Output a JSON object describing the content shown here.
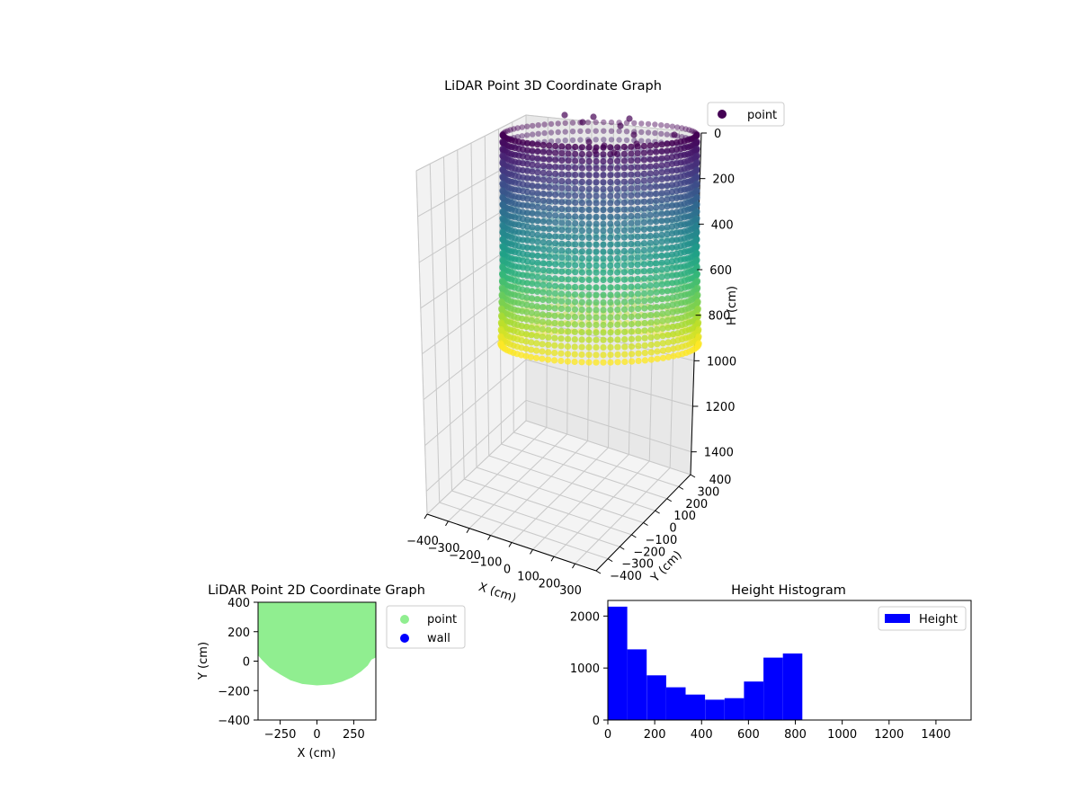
{
  "chart_data": [
    {
      "type": "scatter",
      "projection": "3d",
      "title": "LiDAR Point 3D Coordinate Graph",
      "xlabel": "X (cm)",
      "ylabel": "Y (cm)",
      "zlabel": "H (cm)",
      "xlim": [
        -400,
        400
      ],
      "ylim": [
        -400,
        400
      ],
      "zlim": [
        0,
        1500
      ],
      "z_inverted": true,
      "x_ticks": [
        -400,
        -300,
        -200,
        -100,
        0,
        100,
        200,
        300
      ],
      "y_ticks": [
        -400,
        -300,
        -200,
        -100,
        0,
        100,
        200,
        300,
        400
      ],
      "z_ticks": [
        0,
        200,
        400,
        600,
        800,
        1000,
        1200,
        1400
      ],
      "x_tick_labels": [
        "−400",
        "−300",
        "−200",
        "−100",
        "0",
        "100",
        "200",
        "300"
      ],
      "y_tick_labels": [
        "−400",
        "−300",
        "−200",
        "−100",
        "0",
        "100",
        "200",
        "300",
        "400"
      ],
      "z_tick_labels": [
        "0",
        "200",
        "400",
        "600",
        "800",
        "1000",
        "1200",
        "1400"
      ],
      "colormap": "viridis",
      "legend": [
        {
          "label": "point",
          "color": "#440154"
        }
      ],
      "legend_position": "upper right",
      "series": [
        {
          "shape": "cylinder-wall",
          "radius_x": 390,
          "radius_y_front": 160,
          "radius_y_back": 400,
          "height_range": [
            0,
            830
          ]
        }
      ]
    },
    {
      "type": "scatter",
      "title": "LiDAR Point 2D Coordinate Graph",
      "xlabel": "X (cm)",
      "ylabel": "Y (cm)",
      "xlim": [
        -400,
        400
      ],
      "ylim": [
        -400,
        400
      ],
      "x_ticks": [
        -250,
        0,
        250
      ],
      "y_ticks": [
        -400,
        -200,
        0,
        200,
        400
      ],
      "x_tick_labels": [
        "−250",
        "0",
        "250"
      ],
      "y_tick_labels": [
        "−400",
        "−200",
        "0",
        "200",
        "400"
      ],
      "legend": [
        {
          "label": "point",
          "color": "#90ee90"
        },
        {
          "label": "wall",
          "color": "#0000ff"
        }
      ],
      "legend_position": "outside upper right",
      "series": [
        {
          "name": "point",
          "color": "#90ee90",
          "region_outline": [
            [
              -400,
              400
            ],
            [
              400,
              400
            ],
            [
              400,
              25
            ],
            [
              370,
              10
            ],
            [
              345,
              -30
            ],
            [
              300,
              -70
            ],
            [
              240,
              -110
            ],
            [
              170,
              -140
            ],
            [
              100,
              -158
            ],
            [
              0,
              -165
            ],
            [
              -100,
              -155
            ],
            [
              -180,
              -130
            ],
            [
              -250,
              -90
            ],
            [
              -320,
              -45
            ],
            [
              -375,
              10
            ],
            [
              -400,
              40
            ]
          ]
        }
      ]
    },
    {
      "type": "bar",
      "title": "Height Histogram",
      "xlim": [
        0,
        1550
      ],
      "ylim": [
        0,
        2300
      ],
      "x_ticks": [
        0,
        200,
        400,
        600,
        800,
        1000,
        1200,
        1400
      ],
      "y_ticks": [
        0,
        1000,
        2000
      ],
      "x_tick_labels": [
        "0",
        "200",
        "400",
        "600",
        "800",
        "1000",
        "1200",
        "1400"
      ],
      "y_tick_labels": [
        "0",
        "1000",
        "2000"
      ],
      "legend": [
        {
          "label": "Height",
          "color": "#0000ff"
        }
      ],
      "legend_position": "upper right",
      "bin_edges": [
        0,
        83,
        166,
        249,
        332,
        415,
        498,
        581,
        664,
        747,
        830
      ],
      "series": [
        {
          "name": "Height",
          "color": "#0000ff",
          "values": [
            2180,
            1360,
            860,
            630,
            490,
            390,
            420,
            740,
            1200,
            1280
          ]
        }
      ]
    }
  ]
}
